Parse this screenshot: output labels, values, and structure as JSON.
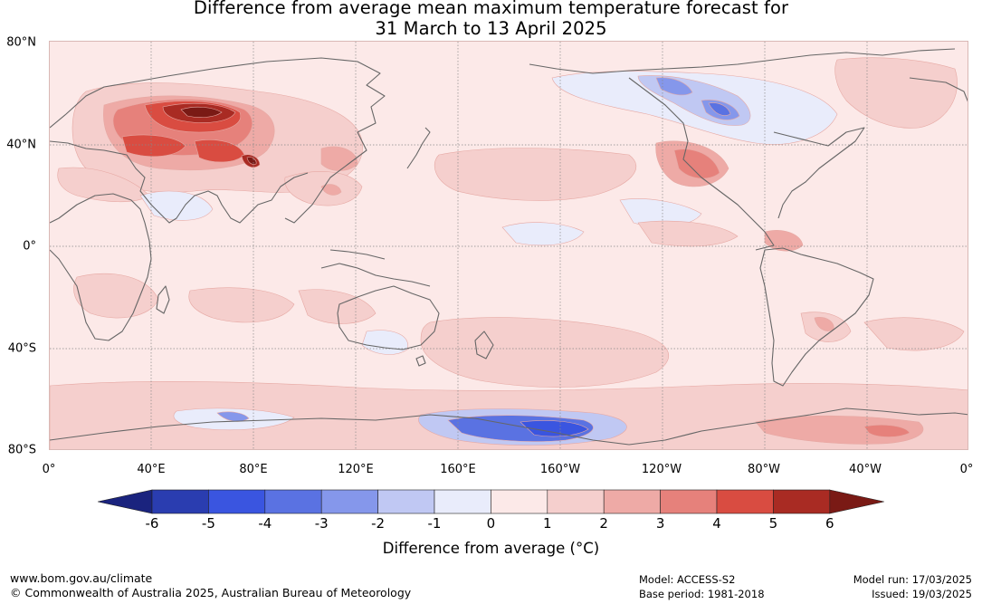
{
  "title": {
    "line1": "Difference from average mean maximum temperature forecast for",
    "line2": "31 March to 13 April 2025"
  },
  "map": {
    "lat_labels": [
      "80°N",
      "40°N",
      "0°",
      "40°S",
      "80°S"
    ],
    "lon_labels": [
      "0°",
      "40°E",
      "80°E",
      "120°E",
      "160°E",
      "160°W",
      "120°W",
      "80°W",
      "40°W",
      "0°"
    ]
  },
  "legend": {
    "title": "Difference from average (°C)",
    "ticks": [
      "-6",
      "-5",
      "-4",
      "-3",
      "-2",
      "-1",
      "0",
      "1",
      "2",
      "3",
      "4",
      "5",
      "6"
    ],
    "colors": [
      "#1a237e",
      "#2a3db0",
      "#3a55e0",
      "#5a72e2",
      "#8597eb",
      "#c0c8f3",
      "#e9ecfb",
      "#fce9e8",
      "#f5cfcd",
      "#eeaaa6",
      "#e6817b",
      "#d94c41",
      "#a92b23",
      "#7a1a15"
    ]
  },
  "footer": {
    "url": "www.bom.gov.au/climate",
    "copyright": "© Commonwealth of Australia 2025, Australian Bureau of Meteorology",
    "model": "Model: ACCESS-S2",
    "base_period": "Base period: 1981-2018",
    "model_run": "Model run: 17/03/2025",
    "issued": "Issued: 19/03/2025"
  }
}
